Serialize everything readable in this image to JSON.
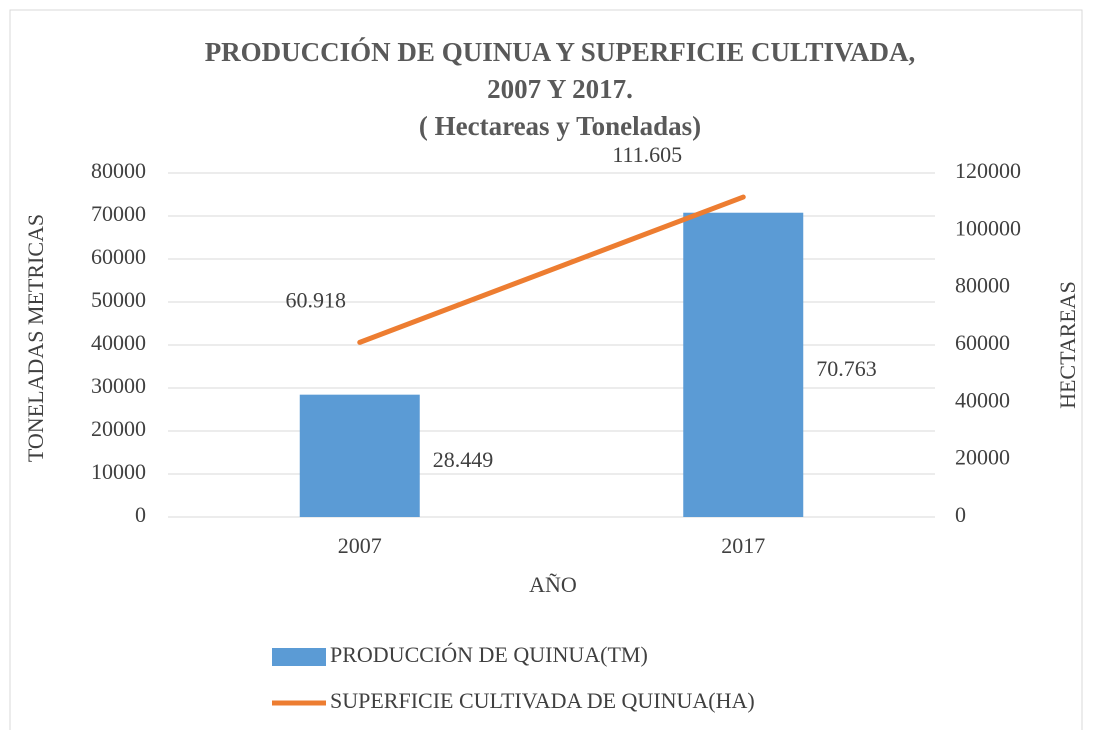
{
  "chart_data": {
    "type": "bar",
    "title": [
      "PRODUCCIÓN DE QUINUA Y SUPERFICIE CULTIVADA,",
      "2007 Y 2017.",
      "( Hectareas y Toneladas)"
    ],
    "xlabel": "AÑO",
    "ylabel": "TONELADAS METRICAS",
    "y2label": "HECTAREAS",
    "categories": [
      "2007",
      "2017"
    ],
    "series": [
      {
        "name": "PRODUCCIÓN DE QUINUA(TM)",
        "type": "bar",
        "color": "#5b9bd5",
        "values": [
          28449,
          70763
        ],
        "value_labels": [
          "28.449",
          "70.763"
        ]
      },
      {
        "name": "SUPERFICIE CULTIVADA DE QUINUA(HA)",
        "type": "line",
        "axis": "y2",
        "color": "#ed7d31",
        "values": [
          60918,
          111605
        ],
        "value_labels": [
          "60.918",
          "111.605"
        ]
      }
    ],
    "ylim": [
      0,
      80000
    ],
    "yticks": [
      0,
      10000,
      20000,
      30000,
      40000,
      50000,
      60000,
      70000,
      80000
    ],
    "y2lim": [
      0,
      120000
    ],
    "y2ticks": [
      0,
      20000,
      40000,
      60000,
      80000,
      100000,
      120000
    ],
    "grid": true,
    "legend": "bottom"
  }
}
